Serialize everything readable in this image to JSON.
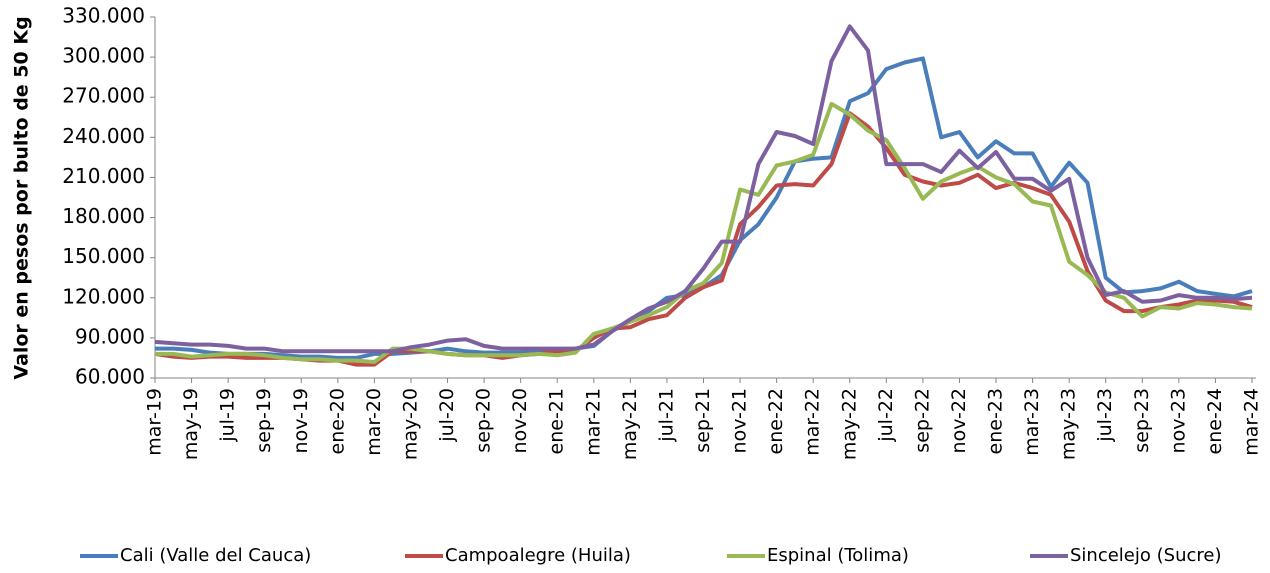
{
  "chart_data": {
    "type": "line",
    "y_label": "Valor en pesos por bulto de 50 Kg",
    "categories": [
      "mar-19",
      null,
      "may-19",
      null,
      "jul-19",
      null,
      "sep-19",
      null,
      "nov-19",
      null,
      "ene-20",
      null,
      "mar-20",
      null,
      "may-20",
      null,
      "jul-20",
      null,
      "sep-20",
      null,
      "nov-20",
      null,
      "ene-21",
      null,
      "mar-21",
      null,
      "may-21",
      null,
      "jul-21",
      null,
      "sep-21",
      null,
      "nov-21",
      null,
      "ene-22",
      null,
      "mar-22",
      null,
      "may-22",
      null,
      "jul-22",
      null,
      "sep-22",
      null,
      "nov-22",
      null,
      "ene-23",
      null,
      "mar-23",
      null,
      "may-23",
      null,
      "jul-23",
      null,
      "sep-23",
      null,
      "nov-23",
      null,
      "ene-24",
      null,
      "mar-24"
    ],
    "series": [
      {
        "name": "Cali (Valle del Cauca)",
        "color": "#4a7ebb",
        "values": [
          82000,
          82000,
          81000,
          79000,
          78000,
          78000,
          78000,
          77000,
          76000,
          76000,
          75000,
          75000,
          78000,
          78000,
          79000,
          80000,
          82000,
          80000,
          79000,
          79000,
          79000,
          80000,
          81000,
          82000,
          84000,
          95000,
          103000,
          110000,
          120000,
          122000,
          128000,
          137000,
          163000,
          175000,
          195000,
          222000,
          224000,
          225000,
          267000,
          273000,
          291000,
          296000,
          299000,
          240000,
          244000,
          225000,
          237000,
          228000,
          228000,
          203000,
          221000,
          206000,
          135000,
          124000,
          125000,
          127000,
          132000,
          125000,
          123000,
          121000,
          125000
        ]
      },
      {
        "name": "Campoalegre (Huila)",
        "color": "#be4b48",
        "values": [
          78000,
          76000,
          75000,
          76000,
          76000,
          75000,
          75000,
          75000,
          74000,
          73000,
          73000,
          70000,
          70000,
          80000,
          80000,
          80000,
          78000,
          77000,
          77000,
          75000,
          77000,
          78000,
          80000,
          80000,
          90000,
          97000,
          98000,
          104000,
          107000,
          120000,
          128000,
          133000,
          175000,
          188000,
          204000,
          205000,
          204000,
          220000,
          258000,
          248000,
          232000,
          212000,
          207000,
          204000,
          206000,
          212000,
          202000,
          206000,
          202000,
          197000,
          177000,
          140000,
          118000,
          110000,
          110000,
          113000,
          115000,
          118000,
          118000,
          117000,
          113000
        ]
      },
      {
        "name": "Espinal (Tolima)",
        "color": "#98b954",
        "values": [
          78000,
          78000,
          76000,
          77000,
          78000,
          78000,
          77000,
          75000,
          74000,
          74000,
          73000,
          73000,
          72000,
          82000,
          82000,
          80000,
          78000,
          77000,
          77000,
          77000,
          77000,
          78000,
          77000,
          79000,
          93000,
          97000,
          102000,
          107000,
          113000,
          125000,
          131000,
          146000,
          201000,
          197000,
          219000,
          222000,
          227000,
          265000,
          257000,
          245000,
          238000,
          217000,
          194000,
          207000,
          213000,
          218000,
          210000,
          205000,
          192000,
          189000,
          147000,
          137000,
          124000,
          120000,
          106000,
          113000,
          112000,
          116000,
          115000,
          113000,
          112000
        ]
      },
      {
        "name": "Sincelejo (Sucre)",
        "color": "#7d60a0",
        "values": [
          87000,
          86000,
          85000,
          85000,
          84000,
          82000,
          82000,
          80000,
          80000,
          80000,
          80000,
          80000,
          80000,
          80000,
          83000,
          85000,
          88000,
          89000,
          84000,
          82000,
          82000,
          82000,
          82000,
          82000,
          85000,
          95000,
          104000,
          112000,
          117000,
          125000,
          142000,
          162000,
          162000,
          220000,
          244000,
          241000,
          235000,
          297000,
          323000,
          305000,
          220000,
          220000,
          220000,
          214000,
          230000,
          217000,
          229000,
          209000,
          209000,
          200000,
          209000,
          150000,
          122000,
          125000,
          117000,
          118000,
          122000,
          120000,
          120000,
          119000,
          120000
        ]
      }
    ],
    "ylim": [
      60000,
      330000
    ],
    "yticks": [
      {
        "value": 60000,
        "label": "60.000"
      },
      {
        "value": 90000,
        "label": "90.000"
      },
      {
        "value": 120000,
        "label": "120.000"
      },
      {
        "value": 150000,
        "label": "150.000"
      },
      {
        "value": 180000,
        "label": "180.000"
      },
      {
        "value": 210000,
        "label": "210.000"
      },
      {
        "value": 240000,
        "label": "240.000"
      },
      {
        "value": 270000,
        "label": "270.000"
      },
      {
        "value": 300000,
        "label": "300.000"
      },
      {
        "value": 330000,
        "label": "330.000"
      }
    ],
    "grid": false,
    "legend": "bottom"
  }
}
